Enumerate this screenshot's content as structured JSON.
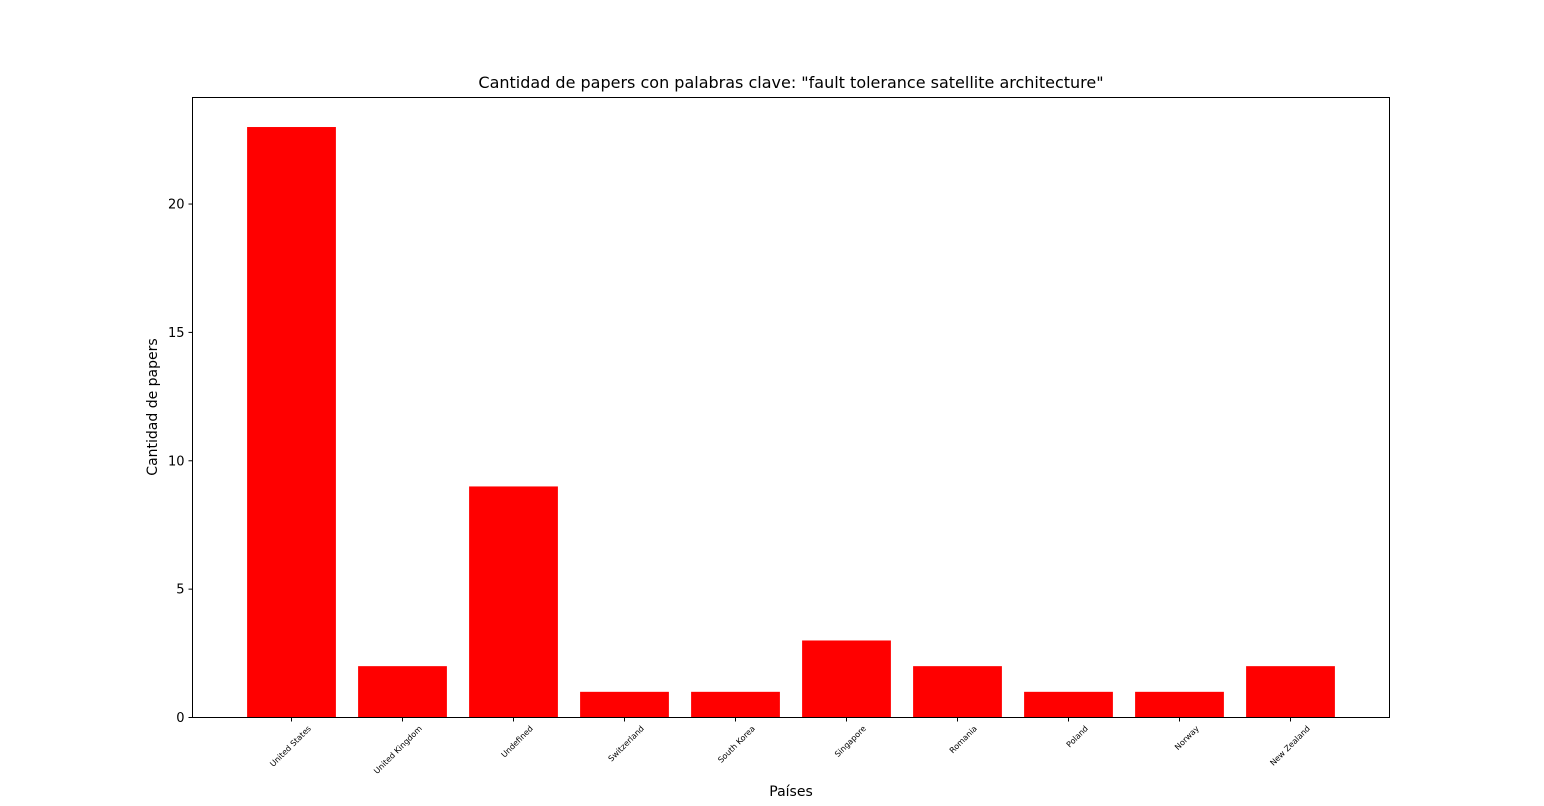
{
  "chart_data": {
    "type": "bar",
    "title": "Cantidad de papers con palabras clave: \"fault tolerance satellite architecture\"",
    "xlabel": "Países",
    "ylabel": "Cantidad de papers",
    "categories": [
      "United States",
      "United Kingdom",
      "Undefined",
      "Switzerland",
      "South Korea",
      "Singapore",
      "Romania",
      "Poland",
      "Norway",
      "New Zealand"
    ],
    "values": [
      23,
      2,
      9,
      1,
      1,
      3,
      2,
      1,
      1,
      2
    ],
    "ylim": [
      0,
      24.15
    ],
    "yticks": [
      0,
      5,
      10,
      15,
      20
    ],
    "bar_color": "#ff0000",
    "grid": false,
    "legend": false
  }
}
